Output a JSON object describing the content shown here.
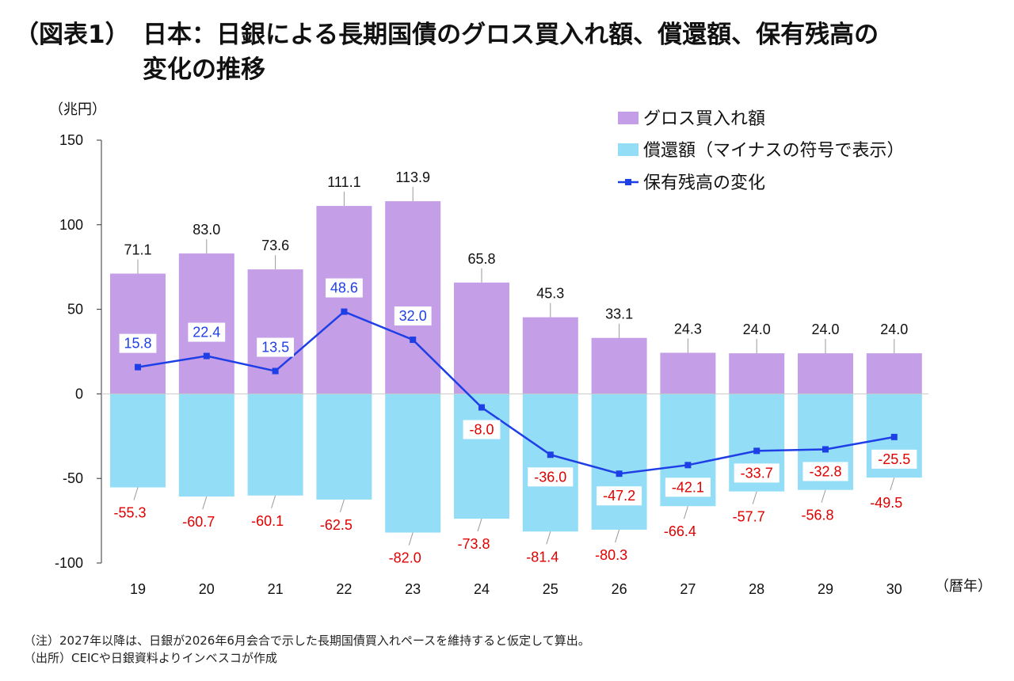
{
  "title": {
    "prefix": "（図表1）",
    "line1": "日本：日銀による長期国債のグロス買入れ額、償還額、保有残高の",
    "line2": "変化の推移"
  },
  "chart_data": {
    "type": "bar",
    "bar_mode": "stacked-diverging",
    "categories": [
      "19",
      "20",
      "21",
      "22",
      "23",
      "24",
      "25",
      "26",
      "27",
      "28",
      "29",
      "30"
    ],
    "series": [
      {
        "name": "グロス買入れ額",
        "kind": "bar",
        "color": "#c49ee6",
        "values": [
          71.1,
          83.0,
          73.6,
          111.1,
          113.9,
          65.8,
          45.3,
          33.1,
          24.3,
          24.0,
          24.0,
          24.0
        ],
        "labels": [
          "71.1",
          "83.0",
          "73.6",
          "111.1",
          "113.9",
          "65.8",
          "45.3",
          "33.1",
          "24.3",
          "24.0",
          "24.0",
          "24.0"
        ]
      },
      {
        "name": "償還額（マイナスの符号で表示）",
        "kind": "bar",
        "color": "#94ddf7",
        "values": [
          -55.3,
          -60.7,
          -60.1,
          -62.5,
          -82.0,
          -73.8,
          -81.4,
          -80.3,
          -66.4,
          -57.7,
          -56.8,
          -49.5
        ],
        "labels": [
          "-55.3",
          "-60.7",
          "-60.1",
          "-62.5",
          "-82.0",
          "-73.8",
          "-81.4",
          "-80.3",
          "-66.4",
          "-57.7",
          "-56.8",
          "-49.5"
        ]
      },
      {
        "name": "保有残高の変化",
        "kind": "line",
        "color": "#1f3fe6",
        "values": [
          15.8,
          22.4,
          13.5,
          48.6,
          32.0,
          -8.0,
          -36.0,
          -47.2,
          -42.1,
          -33.7,
          -32.8,
          -25.5
        ],
        "labels": [
          "15.8",
          "22.4",
          "13.5",
          "48.6",
          "32.0",
          "-8.0",
          "-36.0",
          "-47.2",
          "-42.1",
          "-33.7",
          "-32.8",
          "-25.5"
        ]
      }
    ],
    "y_unit": "（兆円）",
    "x_unit": "（暦年）",
    "ylim": [
      -100,
      150
    ],
    "yticks": [
      "150",
      "100",
      "50",
      "0",
      "-50",
      "-100"
    ],
    "ytick_values": [
      150,
      100,
      50,
      0,
      -50,
      -100
    ],
    "legend_position": "top-right",
    "grid": false,
    "negative_label_color": "#e00000",
    "positive_label_color": "#111111"
  },
  "notes": {
    "note": "（注）2027年以降は、日銀が2026年6月会合で示した長期国債買入れペースを維持すると仮定して算出。",
    "source": "（出所）CEICや日銀資料よりインベスコが作成"
  }
}
